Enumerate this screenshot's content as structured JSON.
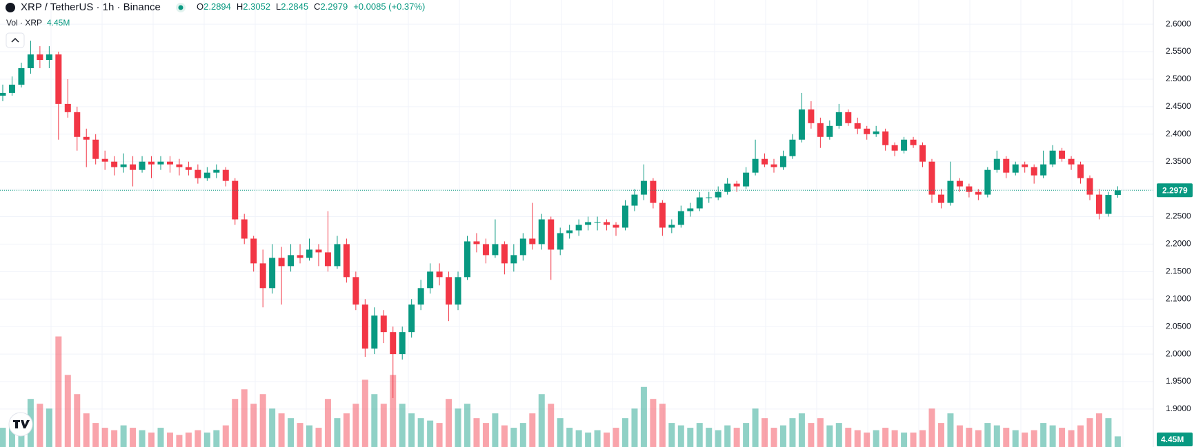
{
  "chart_data": {
    "type": "candlestick",
    "title": "XRP / TetherUS · 1h · Binance",
    "ohlc_labels": [
      "O",
      "H",
      "L",
      "C"
    ],
    "change": "+0.0085 (+0.37%)",
    "volume_title": "Vol · XRP",
    "last_volume_label": "4.45M",
    "up_color": "#089981",
    "down_color": "#f23645",
    "grid": true,
    "ylim": [
      1.831,
      2.644
    ],
    "vlim": [
      0,
      186
    ],
    "yticks": [
      {
        "value": 1.9,
        "label": "1.9000"
      },
      {
        "value": 1.95,
        "label": "1.9500"
      },
      {
        "value": 2.0,
        "label": "2.0000"
      },
      {
        "value": 2.05,
        "label": "2.0500"
      },
      {
        "value": 2.1,
        "label": "2.1000"
      },
      {
        "value": 2.15,
        "label": "2.1500"
      },
      {
        "value": 2.2,
        "label": "2.2000"
      },
      {
        "value": 2.25,
        "label": "2.2500"
      },
      {
        "value": 2.3,
        "label": "2.3000"
      },
      {
        "value": 2.35,
        "label": "2.3500"
      },
      {
        "value": 2.4,
        "label": "2.4000"
      },
      {
        "value": 2.45,
        "label": "2.4500"
      },
      {
        "value": 2.5,
        "label": "2.5000"
      },
      {
        "value": 2.55,
        "label": "2.5500"
      },
      {
        "value": 2.6,
        "label": "2.6000"
      }
    ],
    "candles": [
      [
        2.47,
        2.49,
        2.46,
        2.475
      ],
      [
        2.475,
        2.505,
        2.47,
        2.49
      ],
      [
        2.49,
        2.53,
        2.485,
        2.52
      ],
      [
        2.52,
        2.57,
        2.51,
        2.545
      ],
      [
        2.545,
        2.56,
        2.52,
        2.535
      ],
      [
        2.535,
        2.56,
        2.52,
        2.545
      ],
      [
        2.545,
        2.55,
        2.39,
        2.455
      ],
      [
        2.455,
        2.5,
        2.43,
        2.44
      ],
      [
        2.44,
        2.45,
        2.37,
        2.395
      ],
      [
        2.395,
        2.41,
        2.34,
        2.39
      ],
      [
        2.39,
        2.4,
        2.345,
        2.355
      ],
      [
        2.355,
        2.37,
        2.335,
        2.35
      ],
      [
        2.35,
        2.36,
        2.325,
        2.34
      ],
      [
        2.34,
        2.365,
        2.33,
        2.345
      ],
      [
        2.345,
        2.36,
        2.305,
        2.335
      ],
      [
        2.335,
        2.36,
        2.33,
        2.35
      ],
      [
        2.35,
        2.36,
        2.32,
        2.345
      ],
      [
        2.345,
        2.36,
        2.335,
        2.35
      ],
      [
        2.35,
        2.36,
        2.33,
        2.345
      ],
      [
        2.345,
        2.355,
        2.325,
        2.34
      ],
      [
        2.34,
        2.35,
        2.325,
        2.335
      ],
      [
        2.335,
        2.345,
        2.31,
        2.32
      ],
      [
        2.32,
        2.34,
        2.315,
        2.33
      ],
      [
        2.33,
        2.345,
        2.32,
        2.335
      ],
      [
        2.335,
        2.34,
        2.305,
        2.315
      ],
      [
        2.315,
        2.32,
        2.235,
        2.245
      ],
      [
        2.245,
        2.255,
        2.2,
        2.21
      ],
      [
        2.21,
        2.215,
        2.15,
        2.165
      ],
      [
        2.165,
        2.19,
        2.085,
        2.12
      ],
      [
        2.12,
        2.2,
        2.11,
        2.175
      ],
      [
        2.175,
        2.195,
        2.09,
        2.16
      ],
      [
        2.16,
        2.2,
        2.15,
        2.18
      ],
      [
        2.18,
        2.2,
        2.165,
        2.175
      ],
      [
        2.175,
        2.21,
        2.17,
        2.19
      ],
      [
        2.19,
        2.2,
        2.16,
        2.185
      ],
      [
        2.185,
        2.26,
        2.15,
        2.16
      ],
      [
        2.16,
        2.215,
        2.155,
        2.2
      ],
      [
        2.2,
        2.21,
        2.13,
        2.14
      ],
      [
        2.14,
        2.15,
        2.08,
        2.09
      ],
      [
        2.09,
        2.1,
        1.995,
        2.01
      ],
      [
        2.01,
        2.085,
        2.0,
        2.07
      ],
      [
        2.07,
        2.08,
        2.02,
        2.04
      ],
      [
        2.04,
        2.05,
        1.92,
        2.0
      ],
      [
        2.0,
        2.05,
        1.99,
        2.04
      ],
      [
        2.04,
        2.1,
        2.03,
        2.09
      ],
      [
        2.09,
        2.135,
        2.08,
        2.12
      ],
      [
        2.12,
        2.165,
        2.11,
        2.15
      ],
      [
        2.15,
        2.165,
        2.125,
        2.14
      ],
      [
        2.14,
        2.15,
        2.06,
        2.09
      ],
      [
        2.09,
        2.15,
        2.08,
        2.14
      ],
      [
        2.14,
        2.215,
        2.135,
        2.205
      ],
      [
        2.205,
        2.22,
        2.185,
        2.2
      ],
      [
        2.2,
        2.21,
        2.165,
        2.18
      ],
      [
        2.18,
        2.245,
        2.175,
        2.2
      ],
      [
        2.2,
        2.205,
        2.145,
        2.165
      ],
      [
        2.165,
        2.2,
        2.15,
        2.18
      ],
      [
        2.18,
        2.22,
        2.17,
        2.21
      ],
      [
        2.21,
        2.275,
        2.19,
        2.2
      ],
      [
        2.2,
        2.255,
        2.19,
        2.245
      ],
      [
        2.245,
        2.25,
        2.135,
        2.19
      ],
      [
        2.19,
        2.23,
        2.18,
        2.22
      ],
      [
        2.22,
        2.235,
        2.21,
        2.225
      ],
      [
        2.225,
        2.245,
        2.215,
        2.235
      ],
      [
        2.235,
        2.25,
        2.225,
        2.24
      ],
      [
        2.24,
        2.25,
        2.225,
        2.24
      ],
      [
        2.24,
        2.245,
        2.225,
        2.235
      ],
      [
        2.235,
        2.24,
        2.215,
        2.23
      ],
      [
        2.23,
        2.28,
        2.225,
        2.27
      ],
      [
        2.27,
        2.3,
        2.26,
        2.29
      ],
      [
        2.29,
        2.345,
        2.28,
        2.315
      ],
      [
        2.315,
        2.32,
        2.265,
        2.275
      ],
      [
        2.275,
        2.28,
        2.215,
        2.23
      ],
      [
        2.23,
        2.245,
        2.22,
        2.235
      ],
      [
        2.235,
        2.27,
        2.23,
        2.26
      ],
      [
        2.26,
        2.275,
        2.25,
        2.265
      ],
      [
        2.265,
        2.295,
        2.26,
        2.285
      ],
      [
        2.285,
        2.295,
        2.275,
        2.285
      ],
      [
        2.285,
        2.305,
        2.28,
        2.295
      ],
      [
        2.295,
        2.32,
        2.29,
        2.31
      ],
      [
        2.31,
        2.315,
        2.295,
        2.305
      ],
      [
        2.305,
        2.34,
        2.3,
        2.33
      ],
      [
        2.33,
        2.39,
        2.325,
        2.355
      ],
      [
        2.355,
        2.365,
        2.34,
        2.345
      ],
      [
        2.345,
        2.355,
        2.33,
        2.34
      ],
      [
        2.34,
        2.37,
        2.335,
        2.36
      ],
      [
        2.36,
        2.4,
        2.355,
        2.39
      ],
      [
        2.39,
        2.475,
        2.385,
        2.445
      ],
      [
        2.445,
        2.46,
        2.41,
        2.42
      ],
      [
        2.42,
        2.43,
        2.375,
        2.395
      ],
      [
        2.395,
        2.425,
        2.39,
        2.415
      ],
      [
        2.415,
        2.455,
        2.41,
        2.44
      ],
      [
        2.44,
        2.445,
        2.415,
        2.42
      ],
      [
        2.42,
        2.43,
        2.4,
        2.41
      ],
      [
        2.41,
        2.415,
        2.39,
        2.4
      ],
      [
        2.4,
        2.415,
        2.395,
        2.405
      ],
      [
        2.405,
        2.41,
        2.37,
        2.38
      ],
      [
        2.38,
        2.385,
        2.36,
        2.37
      ],
      [
        2.37,
        2.395,
        2.365,
        2.39
      ],
      [
        2.39,
        2.395,
        2.375,
        2.38
      ],
      [
        2.38,
        2.385,
        2.34,
        2.35
      ],
      [
        2.35,
        2.355,
        2.275,
        2.29
      ],
      [
        2.29,
        2.3,
        2.265,
        2.275
      ],
      [
        2.275,
        2.35,
        2.27,
        2.315
      ],
      [
        2.315,
        2.32,
        2.295,
        2.305
      ],
      [
        2.305,
        2.31,
        2.285,
        2.295
      ],
      [
        2.295,
        2.3,
        2.28,
        2.29
      ],
      [
        2.29,
        2.34,
        2.285,
        2.335
      ],
      [
        2.335,
        2.37,
        2.33,
        2.355
      ],
      [
        2.355,
        2.36,
        2.32,
        2.33
      ],
      [
        2.33,
        2.35,
        2.325,
        2.345
      ],
      [
        2.345,
        2.35,
        2.33,
        2.34
      ],
      [
        2.34,
        2.345,
        2.31,
        2.325
      ],
      [
        2.325,
        2.37,
        2.32,
        2.345
      ],
      [
        2.345,
        2.38,
        2.34,
        2.37
      ],
      [
        2.37,
        2.375,
        2.35,
        2.355
      ],
      [
        2.355,
        2.36,
        2.335,
        2.345
      ],
      [
        2.345,
        2.35,
        2.31,
        2.32
      ],
      [
        2.32,
        2.325,
        2.28,
        2.29
      ],
      [
        2.29,
        2.3,
        2.245,
        2.255
      ],
      [
        2.255,
        2.295,
        2.25,
        2.2894
      ],
      [
        2.2894,
        2.3052,
        2.2845,
        2.2979
      ]
    ],
    "volumes": [
      8,
      10,
      14,
      20,
      18,
      16,
      46,
      30,
      22,
      14,
      10,
      8,
      7,
      9,
      8,
      7,
      6,
      8,
      6,
      5,
      6,
      7,
      6,
      7,
      9,
      20,
      24,
      18,
      22,
      16,
      14,
      12,
      10,
      9,
      8,
      20,
      12,
      14,
      18,
      28,
      22,
      18,
      30,
      18,
      14,
      12,
      11,
      10,
      20,
      16,
      18,
      12,
      10,
      14,
      9,
      8,
      10,
      14,
      22,
      18,
      12,
      8,
      7,
      6,
      7,
      6,
      8,
      12,
      16,
      25,
      20,
      18,
      10,
      9,
      8,
      10,
      8,
      7,
      9,
      8,
      10,
      16,
      12,
      8,
      9,
      12,
      14,
      10,
      12,
      9,
      10,
      8,
      7,
      6,
      7,
      8,
      7,
      6,
      6,
      7,
      16,
      10,
      14,
      9,
      8,
      7,
      10,
      9,
      8,
      7,
      6,
      7,
      10,
      9,
      8,
      7,
      9,
      12,
      14,
      12,
      4.45
    ]
  }
}
